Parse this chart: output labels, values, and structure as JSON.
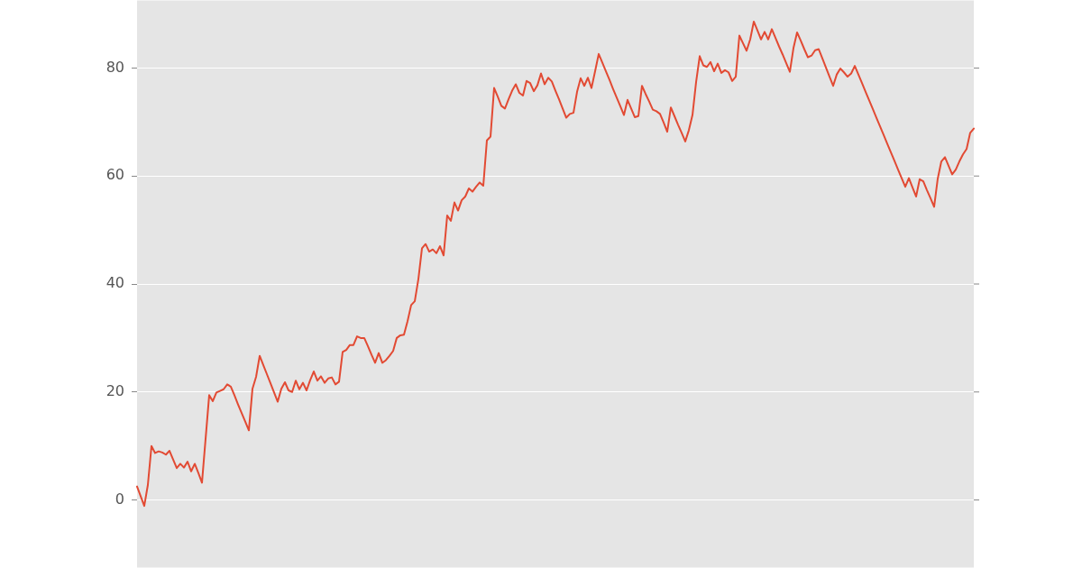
{
  "chart_data": {
    "type": "line",
    "categories": [
      null,
      null,
      null,
      null,
      null,
      null,
      null,
      null,
      null,
      null,
      null,
      null,
      null,
      null,
      null,
      null,
      null,
      null,
      null,
      null,
      null,
      null,
      null,
      null,
      null,
      null,
      null,
      null,
      null,
      null,
      null,
      null,
      null,
      null,
      null,
      null,
      null,
      null,
      null,
      null,
      null,
      null,
      null,
      null,
      null,
      null,
      null,
      null,
      null,
      null,
      null,
      null,
      null,
      null,
      null,
      null,
      null,
      null,
      null,
      null,
      null,
      null,
      null,
      null,
      null,
      null,
      null,
      null,
      null,
      null,
      null,
      null,
      null,
      null,
      null,
      null,
      null,
      null,
      null,
      null,
      null,
      null,
      null,
      null,
      null,
      null,
      null,
      null,
      null,
      null,
      null,
      null,
      null,
      null,
      null,
      null,
      null,
      null,
      null,
      null,
      null,
      null,
      null,
      null,
      null,
      null,
      null,
      null,
      null,
      null,
      null,
      null,
      null,
      null,
      null,
      null,
      null,
      null,
      null,
      null,
      null,
      null,
      null,
      null,
      null,
      null,
      null,
      null,
      null,
      null,
      null,
      null,
      null,
      null,
      null,
      null,
      null,
      null,
      null,
      null,
      null,
      null,
      null,
      null,
      null,
      null,
      null,
      null,
      null,
      null,
      null,
      null,
      null,
      null,
      null,
      null,
      null,
      null,
      null,
      null,
      null,
      null,
      null,
      null,
      null,
      null,
      null,
      null,
      null,
      null,
      null,
      null,
      null,
      null,
      null,
      null,
      null,
      null,
      null,
      null,
      null,
      null,
      null,
      null,
      null,
      null,
      null,
      null,
      null,
      null,
      null,
      null,
      null,
      null,
      null,
      null,
      null,
      null,
      null,
      null,
      null,
      null,
      null,
      null,
      null,
      null,
      null,
      null,
      null,
      null,
      null,
      null,
      null,
      null,
      null,
      null,
      null,
      null,
      null,
      null,
      null,
      null,
      null,
      null,
      null,
      null,
      null,
      null,
      null,
      null,
      null,
      null,
      null
    ],
    "values": [
      2.5,
      0.7,
      -1.1,
      2.8,
      10,
      8.7,
      9,
      8.8,
      8.4,
      9.1,
      7.5,
      5.9,
      6.7,
      6,
      7.1,
      5.3,
      6.7,
      5,
      3.2,
      11.3,
      19.4,
      18.3,
      19.9,
      20.2,
      20.5,
      21.4,
      21,
      19.4,
      17.7,
      16.1,
      14.5,
      12.9,
      20.6,
      22.8,
      26.7,
      25,
      23.3,
      21.6,
      19.9,
      18.2,
      20.6,
      21.8,
      20.3,
      20,
      22.1,
      20.5,
      21.7,
      20.3,
      22.2,
      23.8,
      22.1,
      22.9,
      21.7,
      22.5,
      22.7,
      21.4,
      21.9,
      27.4,
      27.8,
      28.7,
      28.7,
      30.3,
      30,
      30,
      28.5,
      26.9,
      25.4,
      27.2,
      25.4,
      25.9,
      26.7,
      27.6,
      30,
      30.5,
      30.6,
      33.1,
      36.1,
      36.8,
      40.9,
      46.6,
      47.4,
      46,
      46.4,
      45.7,
      47,
      45.3,
      52.7,
      51.7,
      55.1,
      53.6,
      55.5,
      56.2,
      57.7,
      57.1,
      58,
      58.8,
      58.2,
      66.6,
      67.3,
      76.3,
      74.7,
      73,
      72.5,
      74.2,
      75.8,
      77,
      75.4,
      74.9,
      77.6,
      77.2,
      75.7,
      76.8,
      79,
      77,
      78.2,
      77.5,
      75.8,
      74.2,
      72.5,
      70.8,
      71.5,
      71.7,
      75.6,
      78.1,
      76.7,
      78.2,
      76.3,
      79.4,
      82.6,
      81,
      79.4,
      77.8,
      76.1,
      74.5,
      72.9,
      71.3,
      74.1,
      72.5,
      70.9,
      71.1,
      76.7,
      75.2,
      73.8,
      72.3,
      72,
      71.5,
      69.9,
      68.2,
      72.7,
      71.1,
      69.5,
      68,
      66.4,
      68.5,
      71.3,
      77.4,
      82.2,
      80.5,
      80.2,
      81.1,
      79.4,
      80.8,
      79.1,
      79.6,
      79.2,
      77.6,
      78.4,
      86,
      84.6,
      83.2,
      85.3,
      88.6,
      87,
      85.3,
      86.7,
      85.3,
      87.2,
      85.6,
      84,
      82.5,
      80.9,
      79.3,
      83.7,
      86.6,
      85.1,
      83.5,
      82,
      82.3,
      83.3,
      83.5,
      81.8,
      80.1,
      78.4,
      76.7,
      78.8,
      79.9,
      79.2,
      78.4,
      79,
      80.4,
      78.8,
      77.2,
      75.6,
      74,
      72.4,
      70.8,
      69.2,
      67.6,
      66,
      64.4,
      62.8,
      61.2,
      59.6,
      58,
      59.6,
      57.9,
      56.2,
      59.4,
      59,
      57.4,
      55.9,
      54.3,
      59.5,
      62.7,
      63.5,
      61.9,
      60.3,
      61.2,
      62.7,
      64,
      65,
      68,
      68.8
    ],
    "color": "#e24a33",
    "ylim": [
      -12.5,
      92.5
    ],
    "yticks": [
      0,
      20,
      40,
      60,
      80
    ],
    "grid": "y",
    "tick_labels": "y",
    "marker": "none",
    "line_style": "solid"
  }
}
